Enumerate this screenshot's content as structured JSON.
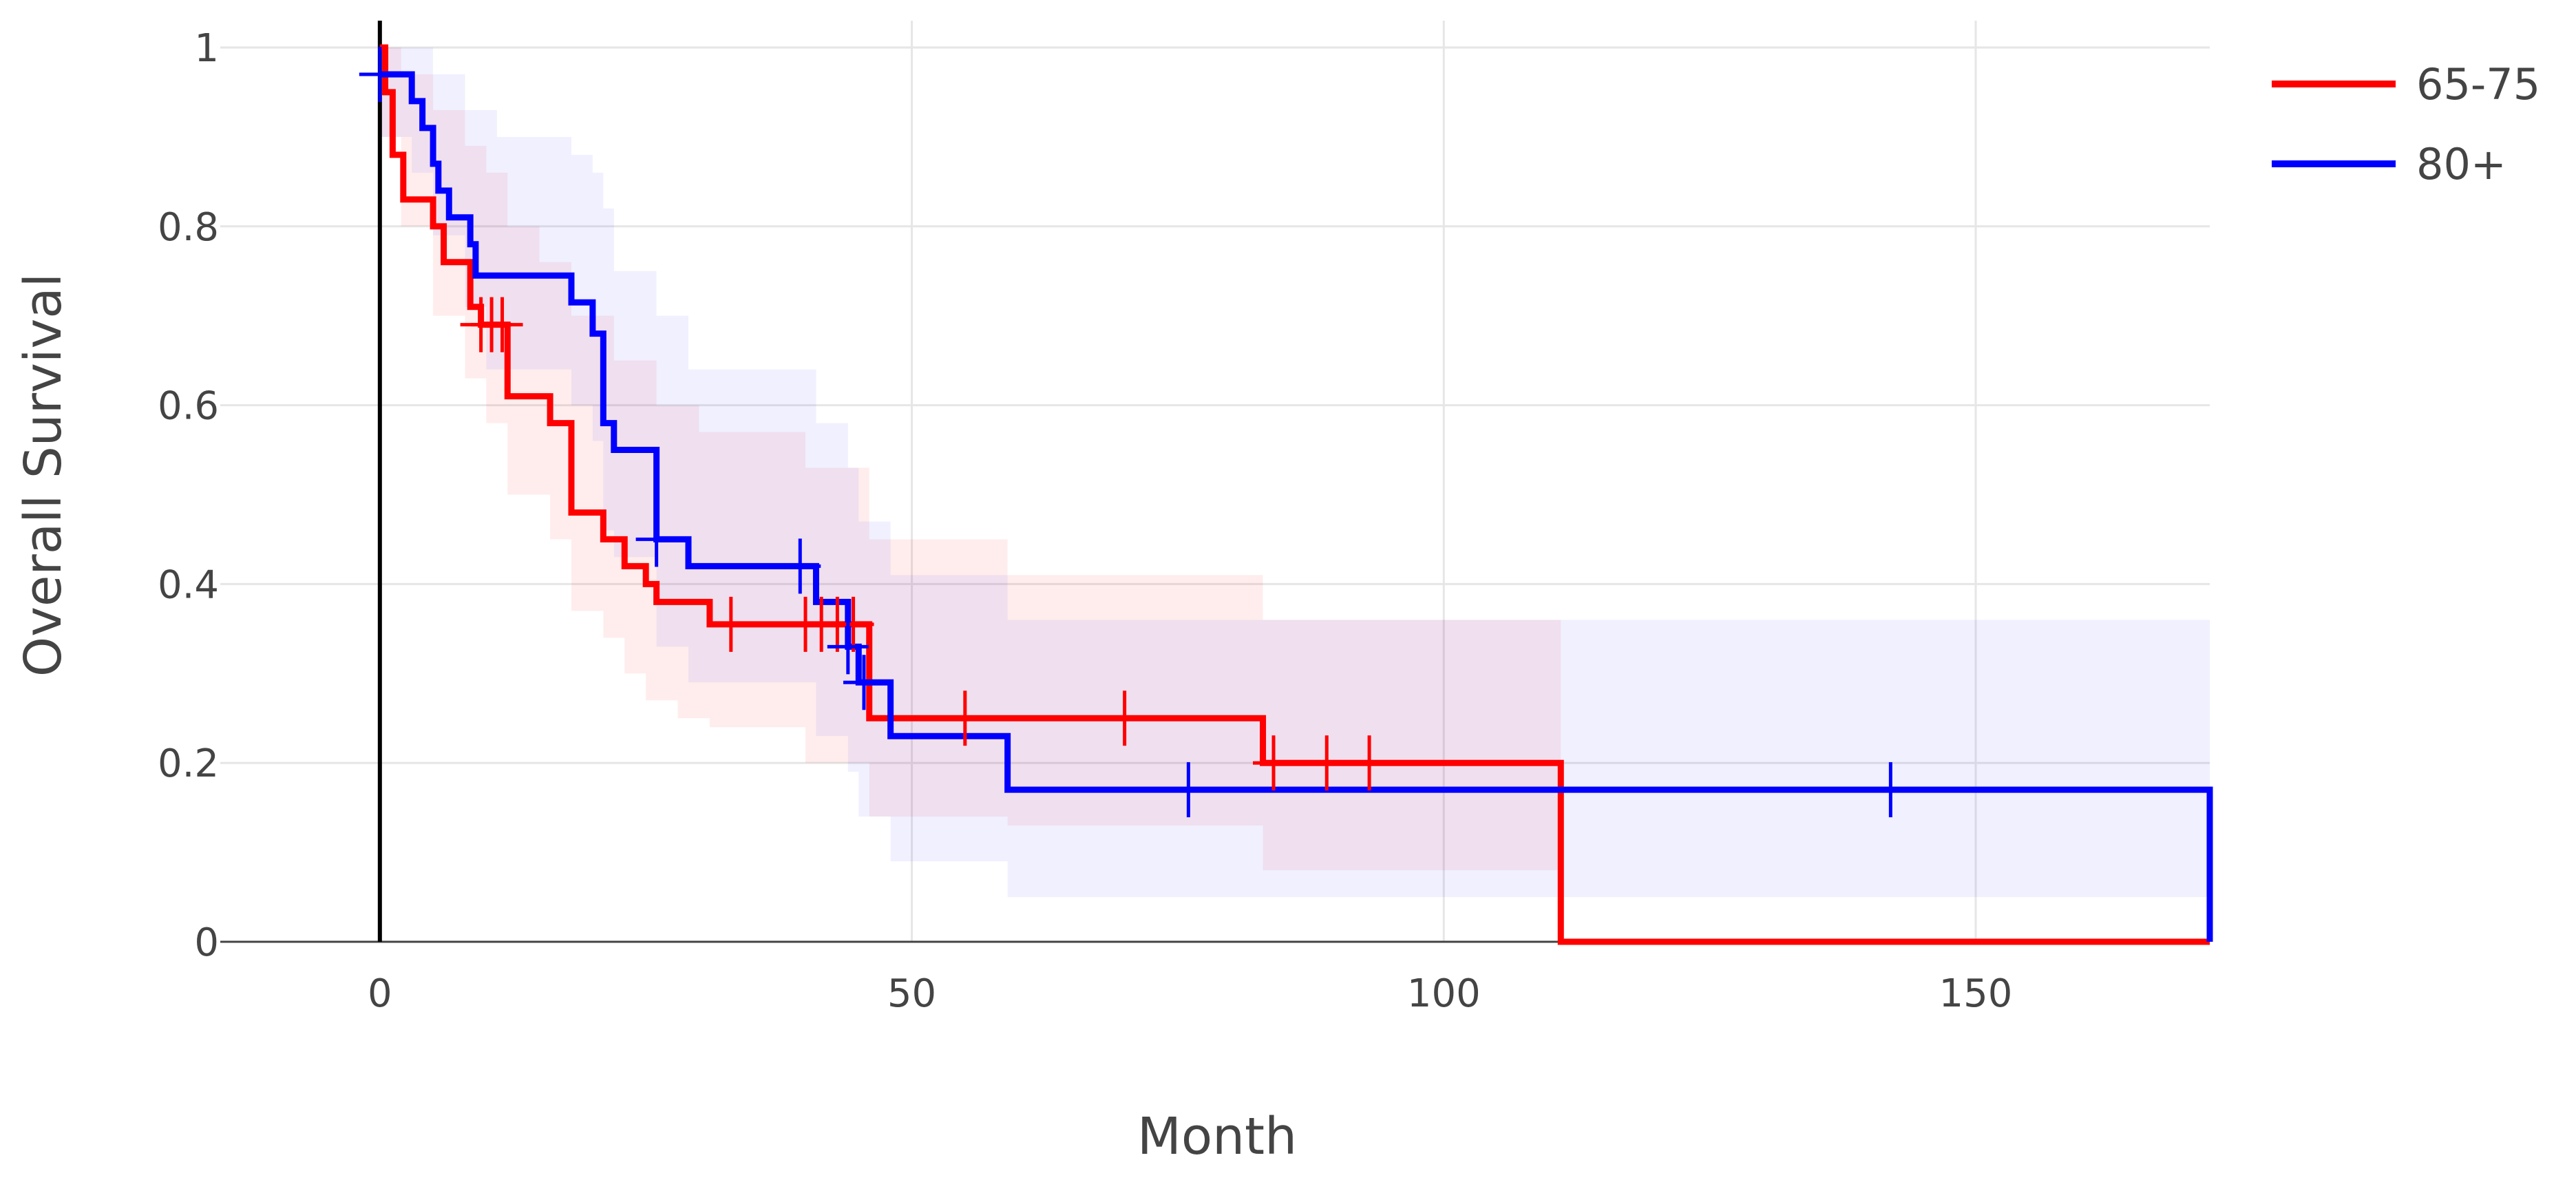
{
  "chart_data": {
    "type": "line",
    "title": "",
    "xlabel": "Month",
    "ylabel": "Overall Survival",
    "xlim": [
      -15,
      172
    ],
    "ylim": [
      0,
      1.03
    ],
    "x_ticks": [
      0,
      50,
      100,
      150
    ],
    "y_ticks": [
      0,
      0.2,
      0.4,
      0.6,
      0.8,
      1
    ],
    "x_tick_labels": [
      "0",
      "50",
      "100",
      "150"
    ],
    "y_tick_labels": [
      "0",
      "0.2",
      "0.4",
      "0.6",
      "0.8",
      "1"
    ],
    "grid": true,
    "legend_position": "top-right",
    "series": [
      {
        "name": "65-75",
        "color": "#ff0000",
        "band_color": "rgba(255,0,0,0.07)",
        "steps": [
          [
            0,
            1
          ],
          [
            0.5,
            0.95
          ],
          [
            1.2,
            0.88
          ],
          [
            2.2,
            0.83
          ],
          [
            5,
            0.8
          ],
          [
            6,
            0.76
          ],
          [
            8.5,
            0.71
          ],
          [
            9.5,
            0.69
          ],
          [
            12,
            0.61
          ],
          [
            16,
            0.58
          ],
          [
            18,
            0.48
          ],
          [
            21,
            0.45
          ],
          [
            23,
            0.42
          ],
          [
            25,
            0.4
          ],
          [
            26,
            0.38
          ],
          [
            31,
            0.355
          ],
          [
            46,
            0.25
          ],
          [
            83,
            0.2
          ],
          [
            111,
            0
          ],
          [
            172,
            0
          ]
        ],
        "upper": [
          [
            0,
            1
          ],
          [
            2,
            0.97
          ],
          [
            5,
            0.93
          ],
          [
            8,
            0.89
          ],
          [
            10,
            0.86
          ],
          [
            12,
            0.8
          ],
          [
            15,
            0.76
          ],
          [
            18,
            0.7
          ],
          [
            22,
            0.65
          ],
          [
            26,
            0.6
          ],
          [
            30,
            0.57
          ],
          [
            40,
            0.53
          ],
          [
            46,
            0.45
          ],
          [
            59,
            0.41
          ],
          [
            83,
            0.36
          ],
          [
            111,
            0.36
          ]
        ],
        "lower": [
          [
            0,
            0.9
          ],
          [
            2,
            0.8
          ],
          [
            5,
            0.7
          ],
          [
            8,
            0.63
          ],
          [
            10,
            0.58
          ],
          [
            12,
            0.5
          ],
          [
            16,
            0.45
          ],
          [
            18,
            0.37
          ],
          [
            21,
            0.34
          ],
          [
            23,
            0.3
          ],
          [
            25,
            0.27
          ],
          [
            28,
            0.25
          ],
          [
            31,
            0.24
          ],
          [
            40,
            0.2
          ],
          [
            46,
            0.14
          ],
          [
            59,
            0.13
          ],
          [
            83,
            0.08
          ],
          [
            111,
            0.08
          ]
        ],
        "censor_times": [
          9.5,
          10.5,
          11.5,
          33,
          40,
          41.5,
          43,
          44.5,
          55,
          70,
          84,
          89,
          93
        ]
      },
      {
        "name": "80+",
        "color": "#0000ff",
        "band_color": "rgba(0,0,255,0.06)",
        "steps": [
          [
            0,
            0.97
          ],
          [
            3,
            0.94
          ],
          [
            4,
            0.91
          ],
          [
            5,
            0.87
          ],
          [
            5.5,
            0.84
          ],
          [
            6.5,
            0.81
          ],
          [
            8.5,
            0.78
          ],
          [
            9,
            0.745
          ],
          [
            18,
            0.715
          ],
          [
            20,
            0.68
          ],
          [
            21,
            0.58
          ],
          [
            22,
            0.55
          ],
          [
            26,
            0.45
          ],
          [
            29,
            0.42
          ],
          [
            41,
            0.38
          ],
          [
            44,
            0.33
          ],
          [
            45,
            0.29
          ],
          [
            48,
            0.23
          ],
          [
            59,
            0.17
          ],
          [
            172,
            0.17
          ],
          [
            172,
            0
          ]
        ],
        "upper": [
          [
            0,
            1
          ],
          [
            3,
            1
          ],
          [
            5,
            0.97
          ],
          [
            8,
            0.93
          ],
          [
            11,
            0.9
          ],
          [
            18,
            0.88
          ],
          [
            20,
            0.86
          ],
          [
            21,
            0.82
          ],
          [
            22,
            0.75
          ],
          [
            26,
            0.7
          ],
          [
            29,
            0.64
          ],
          [
            41,
            0.58
          ],
          [
            44,
            0.53
          ],
          [
            45,
            0.47
          ],
          [
            48,
            0.41
          ],
          [
            59,
            0.36
          ],
          [
            172,
            0.36
          ]
        ],
        "lower": [
          [
            0,
            0.9
          ],
          [
            3,
            0.86
          ],
          [
            5,
            0.79
          ],
          [
            8,
            0.71
          ],
          [
            10,
            0.64
          ],
          [
            18,
            0.6
          ],
          [
            20,
            0.56
          ],
          [
            21,
            0.46
          ],
          [
            22,
            0.43
          ],
          [
            26,
            0.33
          ],
          [
            29,
            0.29
          ],
          [
            41,
            0.23
          ],
          [
            44,
            0.19
          ],
          [
            45,
            0.14
          ],
          [
            48,
            0.09
          ],
          [
            59,
            0.05
          ],
          [
            172,
            0.05
          ]
        ],
        "censor_times": [
          0,
          26,
          39.5,
          44,
          45.5,
          76,
          142
        ]
      }
    ]
  }
}
